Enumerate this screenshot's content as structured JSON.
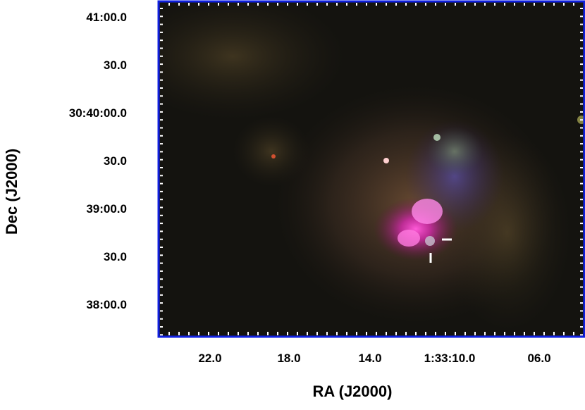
{
  "figure": {
    "x_axis": {
      "title": "RA (J2000)",
      "tick_labels": [
        "22.0",
        "18.0",
        "14.0",
        "1:33:10.0",
        "06.0"
      ]
    },
    "y_axis": {
      "title": "Dec (J2000)",
      "tick_labels": [
        "41:00.0",
        "30.0",
        "30:40:00.0",
        "30.0",
        "39:00.0",
        "30.0",
        "38:00.0"
      ]
    }
  }
}
